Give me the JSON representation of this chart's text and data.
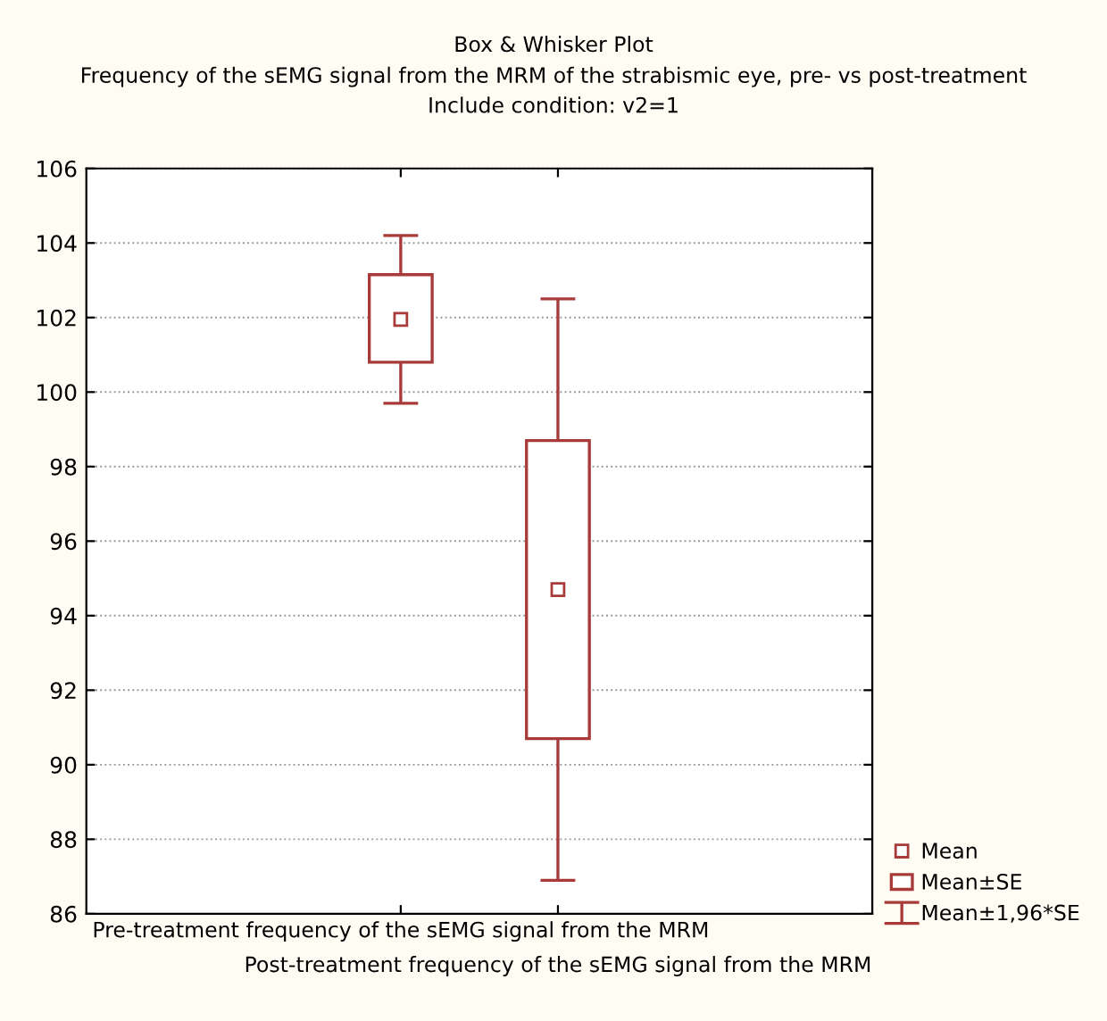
{
  "chart_data": {
    "type": "box",
    "title": "Box & Whisker Plot",
    "subtitle": "Frequency of the sEMG signal from the MRM of the strabismic eye, pre- vs post-treatment\nInclude condition: v2=1",
    "categories": [
      "Pre-treatment frequency of the sEMG signal from the MRM",
      "Post-treatment frequency of the sEMG signal from the MRM"
    ],
    "boxes": [
      {
        "low": 99.7,
        "q1": 100.8,
        "q3": 103.15,
        "high": 104.2,
        "mean": 101.95
      },
      {
        "low": 86.9,
        "q1": 90.7,
        "q3": 98.7,
        "high": 102.5,
        "mean": 94.7
      }
    ],
    "color": "#a83a3a",
    "ylim": [
      86,
      106
    ],
    "yticks": [
      86,
      88,
      90,
      92,
      94,
      96,
      98,
      100,
      102,
      104,
      106
    ],
    "grid": "y",
    "annotations": [
      "Mean",
      "Mean±SE",
      "Mean±1,96*SE"
    ]
  }
}
